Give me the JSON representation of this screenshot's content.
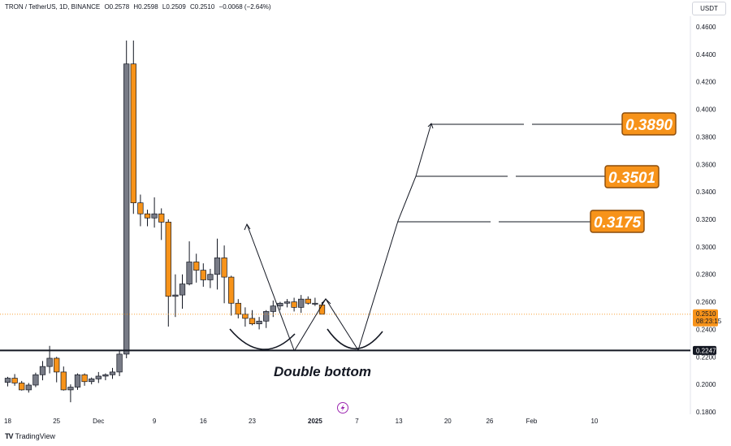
{
  "header": {
    "symbol": "TRON / TetherUS, 1D, BINANCE",
    "open": "O0.2578",
    "high": "H0.2598",
    "low": "L0.2509",
    "close": "C0.2510",
    "change": "−0.0068 (−2.64%)"
  },
  "currency_button": "USDT",
  "footer": {
    "logo_glyph": "TV",
    "brand": "TradingView"
  },
  "price_tag": {
    "value": "0.2510",
    "timer": "08:23:15"
  },
  "support_tag": "0.2247",
  "pattern_label": "Double bottom",
  "colors": {
    "up": "#787b86",
    "down": "#f7931a",
    "target_bg": "#f7931a",
    "target_border": "#8a4b0a",
    "line": "#131722",
    "price_line": "#f7931a"
  },
  "chart_data": {
    "type": "candlestick",
    "ylim": [
      0.176,
      0.472
    ],
    "y_ticks": [
      "0.4600",
      "0.4400",
      "0.4200",
      "0.4000",
      "0.3800",
      "0.3600",
      "0.3400",
      "0.3200",
      "0.3000",
      "0.2800",
      "0.2600",
      "0.2400",
      "0.2200",
      "0.2000",
      "0.1800"
    ],
    "x_ticks": [
      {
        "label": "18",
        "index": 0
      },
      {
        "label": "25",
        "index": 7
      },
      {
        "label": "Dec",
        "index": 13
      },
      {
        "label": "9",
        "index": 21
      },
      {
        "label": "16",
        "index": 28
      },
      {
        "label": "23",
        "index": 35
      },
      {
        "label": "2025",
        "index": 44,
        "bold": true
      },
      {
        "label": "7",
        "index": 50
      },
      {
        "label": "13",
        "index": 56
      },
      {
        "label": "20",
        "index": 63
      },
      {
        "label": "26",
        "index": 69
      },
      {
        "label": "Feb",
        "index": 75
      },
      {
        "label": "10",
        "index": 84
      }
    ],
    "candles": [
      [
        0.2015,
        0.2055,
        0.1985,
        0.2045
      ],
      [
        0.2045,
        0.2075,
        0.199,
        0.201
      ],
      [
        0.201,
        0.2025,
        0.1955,
        0.196
      ],
      [
        0.196,
        0.201,
        0.194,
        0.1995
      ],
      [
        0.1995,
        0.2085,
        0.198,
        0.207
      ],
      [
        0.207,
        0.217,
        0.203,
        0.213
      ],
      [
        0.213,
        0.228,
        0.208,
        0.219
      ],
      [
        0.219,
        0.22,
        0.2015,
        0.209
      ],
      [
        0.209,
        0.213,
        0.1955,
        0.196
      ],
      [
        0.196,
        0.2,
        0.187,
        0.198
      ],
      [
        0.198,
        0.208,
        0.196,
        0.207
      ],
      [
        0.207,
        0.208,
        0.199,
        0.202
      ],
      [
        0.202,
        0.205,
        0.2,
        0.204
      ],
      [
        0.204,
        0.209,
        0.201,
        0.206
      ],
      [
        0.206,
        0.208,
        0.203,
        0.207
      ],
      [
        0.207,
        0.212,
        0.204,
        0.209
      ],
      [
        0.209,
        0.225,
        0.206,
        0.222
      ],
      [
        0.222,
        0.45,
        0.219,
        0.433
      ],
      [
        0.433,
        0.45,
        0.324,
        0.332
      ],
      [
        0.332,
        0.338,
        0.315,
        0.324
      ],
      [
        0.324,
        0.327,
        0.315,
        0.321
      ],
      [
        0.321,
        0.336,
        0.314,
        0.324
      ],
      [
        0.324,
        0.328,
        0.305,
        0.318
      ],
      [
        0.318,
        0.32,
        0.242,
        0.264
      ],
      [
        0.264,
        0.28,
        0.249,
        0.265
      ],
      [
        0.265,
        0.28,
        0.255,
        0.273
      ],
      [
        0.273,
        0.304,
        0.272,
        0.289
      ],
      [
        0.289,
        0.295,
        0.274,
        0.283
      ],
      [
        0.283,
        0.288,
        0.271,
        0.276
      ],
      [
        0.276,
        0.284,
        0.27,
        0.28
      ],
      [
        0.28,
        0.306,
        0.269,
        0.292
      ],
      [
        0.292,
        0.301,
        0.259,
        0.278
      ],
      [
        0.278,
        0.279,
        0.25,
        0.259
      ],
      [
        0.259,
        0.262,
        0.248,
        0.251
      ],
      [
        0.251,
        0.256,
        0.242,
        0.248
      ],
      [
        0.248,
        0.254,
        0.243,
        0.244
      ],
      [
        0.244,
        0.249,
        0.24,
        0.246
      ],
      [
        0.246,
        0.254,
        0.241,
        0.253
      ],
      [
        0.253,
        0.261,
        0.249,
        0.257
      ],
      [
        0.257,
        0.26,
        0.254,
        0.259
      ],
      [
        0.259,
        0.262,
        0.256,
        0.26
      ],
      [
        0.26,
        0.263,
        0.253,
        0.256
      ],
      [
        0.256,
        0.265,
        0.252,
        0.262
      ],
      [
        0.262,
        0.264,
        0.258,
        0.259
      ],
      [
        0.259,
        0.263,
        0.257,
        0.259
      ],
      [
        0.2578,
        0.2598,
        0.2509,
        0.251
      ]
    ],
    "current_price": 0.251,
    "support_level": 0.2247,
    "targets": [
      {
        "label": "0.3890",
        "value": 0.389
      },
      {
        "label": "0.3501",
        "value": 0.3501
      },
      {
        "label": "0.3175",
        "value": 0.3175
      }
    ]
  }
}
